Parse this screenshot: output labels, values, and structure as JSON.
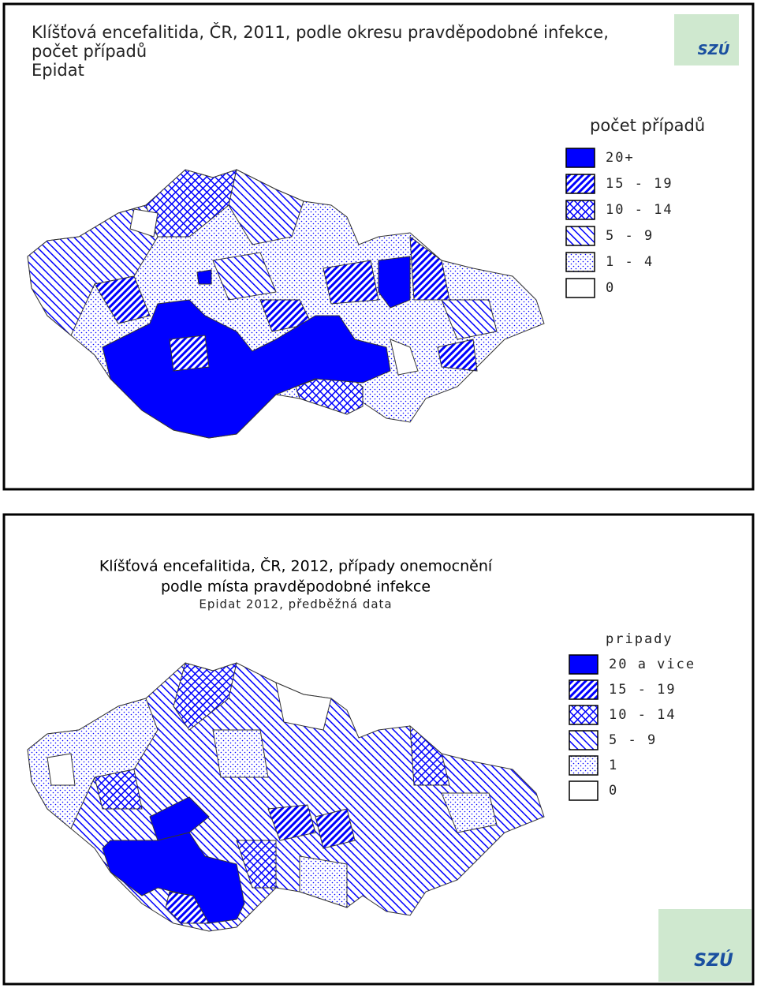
{
  "panels": [
    {
      "title_lines": [
        "Klíšťová encefalitida, ČR, 2011, podle okresu pravděpodobné infekce,",
        "počet případů",
        "Epidat"
      ],
      "legend_title": "počet případů",
      "legend": [
        "20+",
        "15 - 19",
        "10 - 14",
        "5 - 9",
        "1 - 4",
        "0"
      ],
      "logo": "SZÚ"
    },
    {
      "title_lines": [
        "Klíšťová encefalitida, ČR, 2012, případy onemocnění",
        "podle místa pravděpodobné infekce",
        "Epidat 2012, předběžná data"
      ],
      "legend_title": "pripady",
      "legend": [
        "20 a vice",
        "15 - 19",
        "10 - 14",
        "5 - 9",
        "1",
        "0"
      ],
      "logo": "SZÚ"
    }
  ]
}
